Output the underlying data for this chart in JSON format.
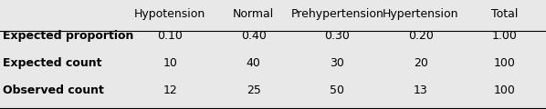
{
  "col_headers": [
    "Hypotension",
    "Normal",
    "Prehypertension",
    "Hypertension",
    "Total"
  ],
  "row_headers": [
    "Expected proportion",
    "Expected count",
    "Observed count"
  ],
  "table_data": [
    [
      "0.10",
      "0.40",
      "0.30",
      "0.20",
      "1.00"
    ],
    [
      "10",
      "40",
      "30",
      "20",
      "100"
    ],
    [
      "12",
      "25",
      "50",
      "13",
      "100"
    ]
  ],
  "background_color": "#e8e8e8",
  "header_line_color": "#000000",
  "text_color": "#000000",
  "header_fontsize": 9,
  "cell_fontsize": 9,
  "row_header_fontsize": 9,
  "fig_width": 5.98,
  "fig_height": 1.2,
  "dpi": 100
}
